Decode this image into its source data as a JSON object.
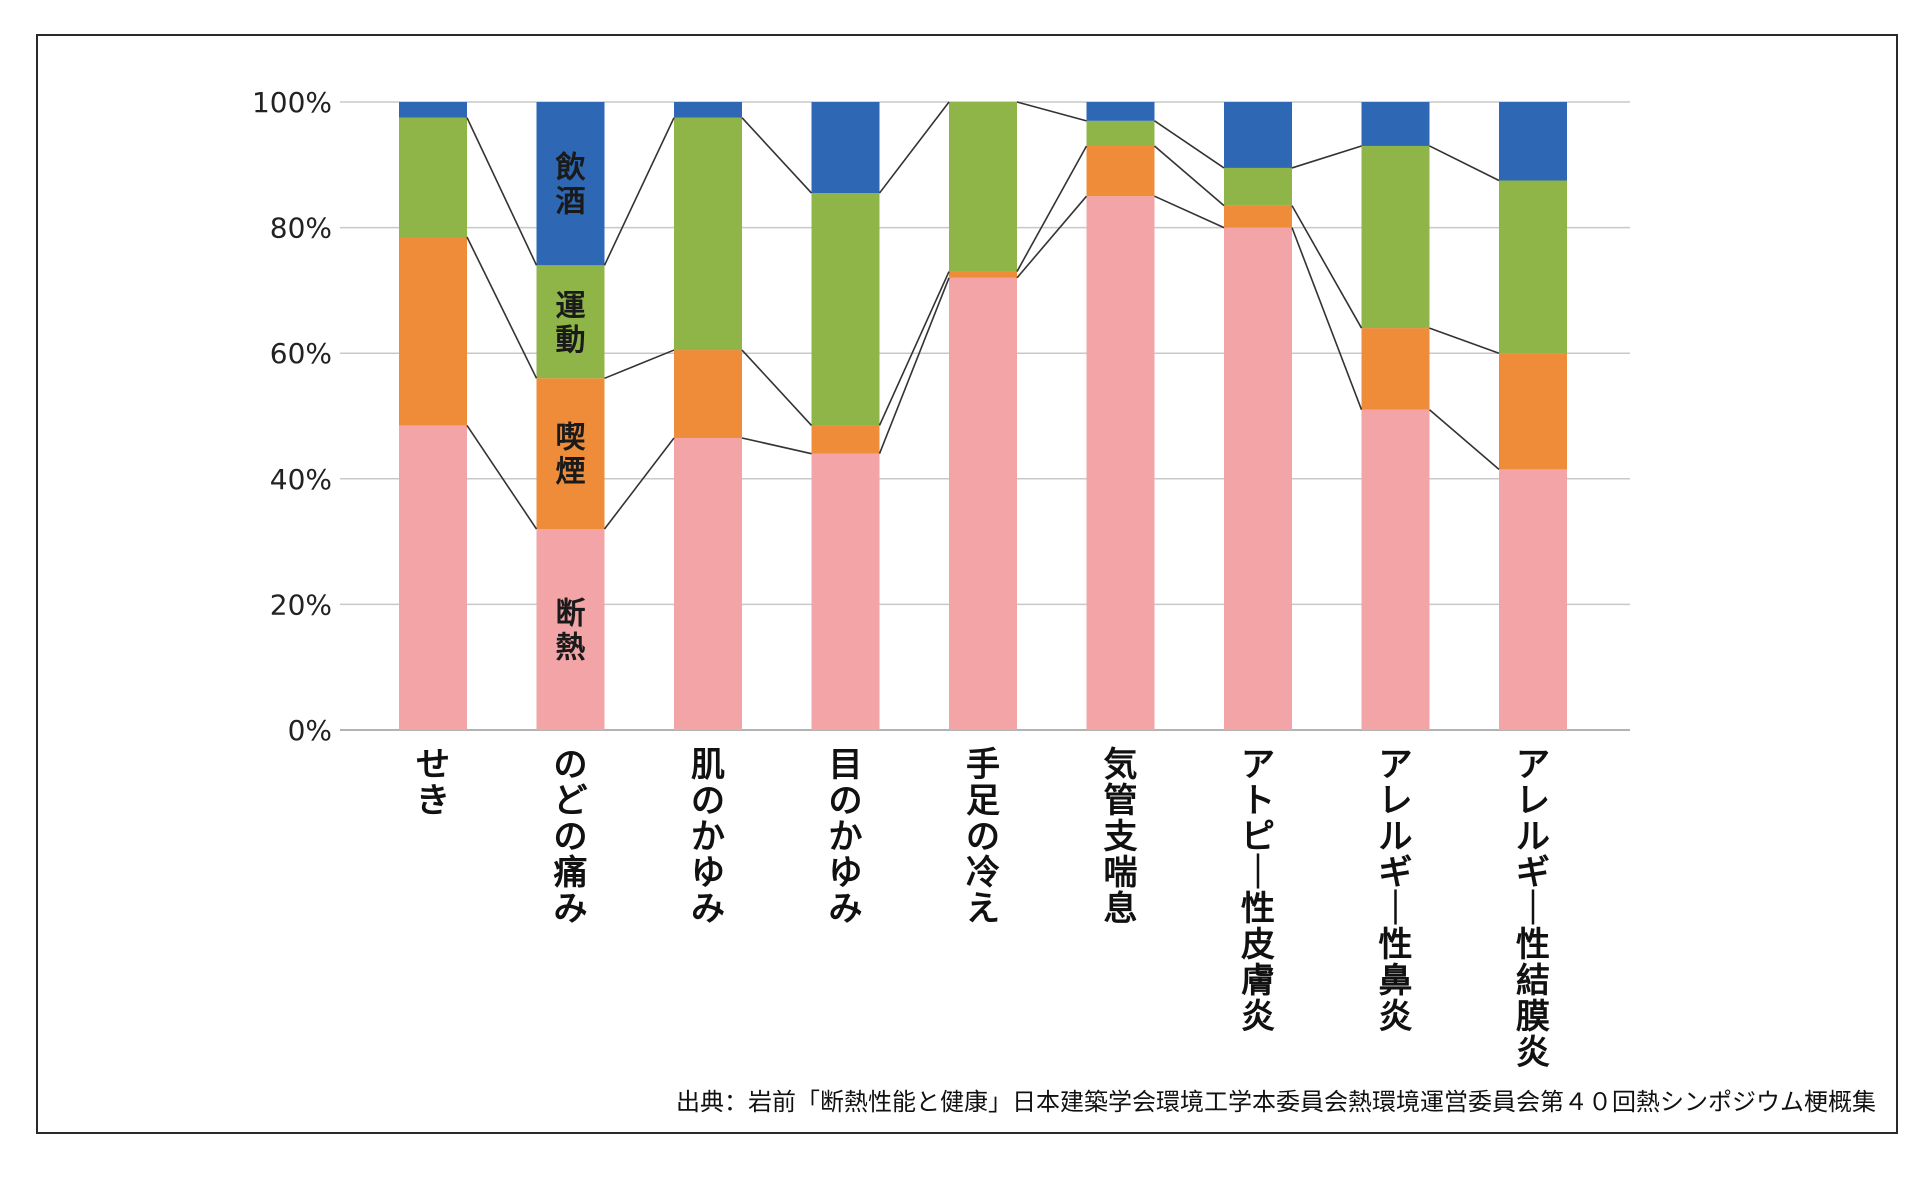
{
  "chart_data": {
    "type": "bar",
    "stacked": true,
    "categories": [
      "せき",
      "のどの痛み",
      "肌のかゆみ",
      "目のかゆみ",
      "手足の冷え",
      "気管支喘息",
      "アトピー性皮膚炎",
      "アレルギー性鼻炎",
      "アレルギー性結膜炎"
    ],
    "series": [
      {
        "name": "断熱",
        "color": "#f2a4a6",
        "values": [
          48.5,
          32,
          46.5,
          44,
          72,
          85,
          80,
          51,
          41.5
        ]
      },
      {
        "name": "喫煙",
        "color": "#ee8c3a",
        "values": [
          30,
          24,
          14,
          4.5,
          1,
          8,
          3.5,
          13,
          18.5
        ]
      },
      {
        "name": "運動",
        "color": "#8fb447",
        "values": [
          19,
          18,
          37,
          37,
          27,
          4,
          6,
          29,
          27.5
        ]
      },
      {
        "name": "飲酒",
        "color": "#2e68b4",
        "values": [
          2.5,
          26,
          2.5,
          14.5,
          0,
          3,
          10.5,
          7,
          12.5
        ]
      }
    ],
    "ylim": [
      0,
      100
    ],
    "yticks": [
      "0%",
      "20%",
      "40%",
      "60%",
      "80%",
      "100%"
    ],
    "grid": true,
    "segment_labels_on_category": "のどの痛み"
  },
  "source_note": "出典：岩前「断熱性能と健康」日本建築学会環境工学本委員会熱環境運営委員会第４０回熱シンポジウム梗概集"
}
